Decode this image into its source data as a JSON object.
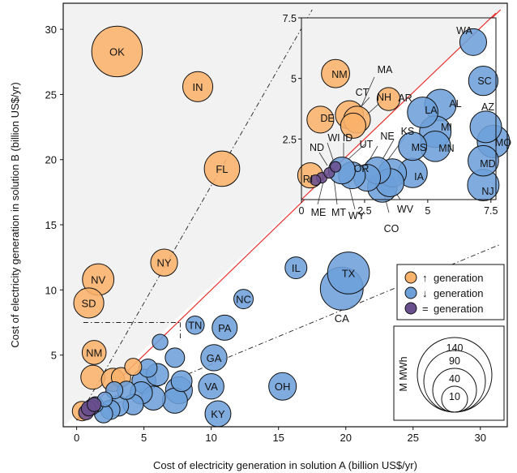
{
  "chart_data": {
    "type": "scatter",
    "main": {
      "xlabel": "Cost of electricity generation in solution A (billion US$/yr)",
      "ylabel": "Cost of electricity generation in solution B (billion US$/yr)",
      "xlim": [
        -1,
        32
      ],
      "ylim": [
        -0.5,
        32
      ],
      "xticks": [
        "0",
        "5",
        "10",
        "15",
        "20",
        "25",
        "30"
      ],
      "yticks": [
        "5",
        "10",
        "15",
        "20",
        "25",
        "30"
      ],
      "points": [
        {
          "label": "OK",
          "x": 3.0,
          "y": 28.3,
          "size": 140,
          "group": "up"
        },
        {
          "label": "IN",
          "x": 9.0,
          "y": 25.6,
          "size": 40,
          "group": "up"
        },
        {
          "label": "FL",
          "x": 10.8,
          "y": 19.3,
          "size": 60,
          "group": "up"
        },
        {
          "label": "NY",
          "x": 6.5,
          "y": 12.1,
          "size": 30,
          "group": "up"
        },
        {
          "label": "NV",
          "x": 1.6,
          "y": 10.8,
          "size": 45,
          "group": "up"
        },
        {
          "label": "SD",
          "x": 0.9,
          "y": 9.0,
          "size": 40,
          "group": "up"
        },
        {
          "label": "NM",
          "x": 1.3,
          "y": 5.2,
          "size": 22,
          "group": "up"
        },
        {
          "label": "",
          "x": 1.2,
          "y": 3.3,
          "size": 22,
          "group": "up"
        },
        {
          "label": "",
          "x": 2.7,
          "y": 3.1,
          "size": 20,
          "group": "up"
        },
        {
          "label": "",
          "x": 3.3,
          "y": 3.3,
          "size": 12,
          "group": "up"
        },
        {
          "label": "",
          "x": 4.2,
          "y": 4.1,
          "size": 8,
          "group": "up"
        },
        {
          "label": "",
          "x": 0.4,
          "y": 0.7,
          "size": 12,
          "group": "up"
        },
        {
          "label": "TX",
          "x": 20.2,
          "y": 11.3,
          "size": 90,
          "group": "down"
        },
        {
          "label": "CA",
          "x": 19.7,
          "y": 10.1,
          "size": 95,
          "group": "down"
        },
        {
          "label": "IL",
          "x": 16.3,
          "y": 11.7,
          "size": 17,
          "group": "down"
        },
        {
          "label": "NC",
          "x": 12.4,
          "y": 9.3,
          "size": 12,
          "group": "down"
        },
        {
          "label": "TN",
          "x": 8.8,
          "y": 7.3,
          "size": 10,
          "group": "down"
        },
        {
          "label": "PA",
          "x": 11.0,
          "y": 7.1,
          "size": 25,
          "group": "down"
        },
        {
          "label": "GA",
          "x": 10.2,
          "y": 4.8,
          "size": 28,
          "group": "down"
        },
        {
          "label": "VA",
          "x": 10.0,
          "y": 2.6,
          "size": 26,
          "group": "down"
        },
        {
          "label": "OH",
          "x": 15.3,
          "y": 2.6,
          "size": 32,
          "group": "down"
        },
        {
          "label": "KY",
          "x": 10.5,
          "y": 0.5,
          "size": 27,
          "group": "down"
        },
        {
          "label": "",
          "x": 6.2,
          "y": 6.0,
          "size": 6,
          "group": "down"
        },
        {
          "label": "",
          "x": 7.3,
          "y": 4.8,
          "size": 12,
          "group": "down"
        },
        {
          "label": "",
          "x": 5.3,
          "y": 4.0,
          "size": 10,
          "group": "down"
        },
        {
          "label": "",
          "x": 6.0,
          "y": 3.5,
          "size": 18,
          "group": "down"
        },
        {
          "label": "",
          "x": 5.0,
          "y": 3.0,
          "size": 22,
          "group": "down"
        },
        {
          "label": "",
          "x": 7.8,
          "y": 3.0,
          "size": 15,
          "group": "down"
        },
        {
          "label": "",
          "x": 7.6,
          "y": 2.3,
          "size": 30,
          "group": "down"
        },
        {
          "label": "",
          "x": 7.3,
          "y": 1.5,
          "size": 25,
          "group": "down"
        },
        {
          "label": "",
          "x": 5.7,
          "y": 1.7,
          "size": 22,
          "group": "down"
        },
        {
          "label": "",
          "x": 4.8,
          "y": 2.1,
          "size": 18,
          "group": "down"
        },
        {
          "label": "",
          "x": 4.2,
          "y": 1.2,
          "size": 14,
          "group": "down"
        },
        {
          "label": "",
          "x": 3.7,
          "y": 2.3,
          "size": 10,
          "group": "down"
        },
        {
          "label": "",
          "x": 3.1,
          "y": 1.1,
          "size": 14,
          "group": "down"
        },
        {
          "label": "",
          "x": 2.5,
          "y": 0.8,
          "size": 12,
          "group": "down"
        },
        {
          "label": "",
          "x": 2.0,
          "y": 0.5,
          "size": 10,
          "group": "down"
        },
        {
          "label": "",
          "x": 2.8,
          "y": 2.3,
          "size": 8,
          "group": "down"
        },
        {
          "label": "",
          "x": 1.4,
          "y": 1.2,
          "size": 6,
          "group": "down"
        },
        {
          "label": "",
          "x": 2.1,
          "y": 1.6,
          "size": 5,
          "group": "down"
        },
        {
          "label": "",
          "x": 0.7,
          "y": 0.6,
          "size": 5,
          "group": "eq"
        },
        {
          "label": "",
          "x": 0.9,
          "y": 0.9,
          "size": 5,
          "group": "eq"
        },
        {
          "label": "",
          "x": 1.1,
          "y": 1.0,
          "size": 6,
          "group": "eq"
        },
        {
          "label": "",
          "x": 1.3,
          "y": 1.2,
          "size": 4,
          "group": "eq"
        }
      ]
    },
    "inset": {
      "xlim": [
        0,
        7.7
      ],
      "ylim": [
        0,
        7.5
      ],
      "xticks": [
        "0",
        "2.5",
        "5",
        "7.5"
      ],
      "yticks": [
        "2.5",
        "5",
        "7.5"
      ],
      "points": [
        {
          "label": "WA",
          "x": 6.8,
          "y": 6.5,
          "size": 3,
          "group": "down"
        },
        {
          "label": "SC",
          "x": 7.2,
          "y": 4.9,
          "size": 5,
          "group": "down"
        },
        {
          "label": "AZ",
          "x": 7.3,
          "y": 3.0,
          "size": 7,
          "group": "down"
        },
        {
          "label": "MO",
          "x": 7.6,
          "y": 2.4,
          "size": 8,
          "group": "down"
        },
        {
          "label": "MD",
          "x": 7.2,
          "y": 1.6,
          "size": 6,
          "group": "down"
        },
        {
          "label": "NJ",
          "x": 7.2,
          "y": 0.6,
          "size": 7,
          "group": "down"
        },
        {
          "label": "AL",
          "x": 5.5,
          "y": 3.9,
          "size": 7,
          "group": "down"
        },
        {
          "label": "LA",
          "x": 4.8,
          "y": 3.6,
          "size": 6,
          "group": "down"
        },
        {
          "label": "MI",
          "x": 5.3,
          "y": 2.8,
          "size": 7,
          "group": "down"
        },
        {
          "label": "MN",
          "x": 5.3,
          "y": 2.2,
          "size": 6,
          "group": "down"
        },
        {
          "label": "MS",
          "x": 4.4,
          "y": 2.2,
          "size": 4,
          "group": "down"
        },
        {
          "label": "IA",
          "x": 4.4,
          "y": 1.1,
          "size": 5,
          "group": "down"
        },
        {
          "label": "KS",
          "x": 3.6,
          "y": 1.1,
          "size": 4,
          "group": "down"
        },
        {
          "label": "NE",
          "x": 3.0,
          "y": 1.2,
          "size": 3,
          "group": "down"
        },
        {
          "label": "",
          "x": 3.5,
          "y": 0.7,
          "size": 4,
          "group": "down"
        },
        {
          "label": "",
          "x": 3.2,
          "y": 0.5,
          "size": 5,
          "group": "down"
        },
        {
          "label": "",
          "x": 2.6,
          "y": 0.9,
          "size": 3,
          "group": "down"
        },
        {
          "label": "",
          "x": 2.0,
          "y": 1.0,
          "size": 3,
          "group": "down"
        },
        {
          "label": "",
          "x": 1.6,
          "y": 1.2,
          "size": 3,
          "group": "down"
        },
        {
          "label": "NM",
          "x": 1.35,
          "y": 5.2,
          "size": 4,
          "group": "up"
        },
        {
          "label": "DE",
          "x": 0.75,
          "y": 3.3,
          "size": 3,
          "group": "up"
        },
        {
          "label": "AR",
          "x": 3.45,
          "y": 4.15,
          "size": 1,
          "group": "up"
        },
        {
          "label": "",
          "x": 1.9,
          "y": 3.5,
          "size": 4,
          "group": "up"
        },
        {
          "label": "",
          "x": 2.2,
          "y": 3.3,
          "size": 3,
          "group": "up"
        },
        {
          "label": "",
          "x": 2.05,
          "y": 3.05,
          "size": 2,
          "group": "up"
        },
        {
          "label": "RI",
          "x": 0.35,
          "y": 1.0,
          "size": 2,
          "group": "up"
        },
        {
          "label": "",
          "x": 0.8,
          "y": 0.9,
          "size": 1,
          "group": "eq"
        },
        {
          "label": "",
          "x": 1.1,
          "y": 1.1,
          "size": 1,
          "group": "eq"
        },
        {
          "label": "",
          "x": 1.35,
          "y": 1.35,
          "size": 1,
          "group": "eq"
        },
        {
          "label": "",
          "x": 0.55,
          "y": 0.8,
          "size": 1,
          "group": "eq"
        },
        {
          "label": "MA",
          "x": 1.85,
          "y": 3.3,
          "size": 0,
          "group": "none"
        },
        {
          "label": "CT",
          "x": 1.8,
          "y": 3.0,
          "size": 0,
          "group": "none"
        },
        {
          "label": "NH",
          "x": 2.2,
          "y": 3.1,
          "size": 0,
          "group": "none"
        },
        {
          "label": "UT",
          "x": 1.7,
          "y": 1.7,
          "size": 0,
          "group": "none"
        },
        {
          "label": "ID",
          "x": 1.5,
          "y": 1.4,
          "size": 0,
          "group": "none"
        },
        {
          "label": "WI",
          "x": 1.3,
          "y": 1.3,
          "size": 0,
          "group": "none"
        },
        {
          "label": "ND",
          "x": 1.0,
          "y": 1.1,
          "size": 0,
          "group": "none"
        },
        {
          "label": "OR",
          "x": 2.0,
          "y": 1.0,
          "size": 0,
          "group": "none"
        },
        {
          "label": "ME",
          "x": 0.8,
          "y": 0.8,
          "size": 0,
          "group": "none"
        },
        {
          "label": "MT",
          "x": 1.1,
          "y": 0.95,
          "size": 0,
          "group": "none"
        },
        {
          "label": "WY",
          "x": 1.5,
          "y": 1.0,
          "size": 0,
          "group": "none"
        },
        {
          "label": "CO",
          "x": 3.4,
          "y": 0.6,
          "size": 0,
          "group": "none"
        },
        {
          "label": "WV",
          "x": 3.0,
          "y": 0.8,
          "size": 0,
          "group": "none"
        }
      ]
    },
    "legend": {
      "placement": "right",
      "entries": [
        {
          "label": "generation",
          "symbol": "↑",
          "color": "#f9b26b"
        },
        {
          "label": "generation",
          "symbol": "↓",
          "color": "#6d9fd9"
        },
        {
          "label": "generation",
          "symbol": "=",
          "color": "#6a4f8f"
        }
      ]
    },
    "size_legend": {
      "unit": "M MWh",
      "values": [
        140,
        90,
        40,
        10
      ]
    },
    "colors": {
      "up": "#f9b26b",
      "down": "#6d9fd9",
      "eq": "#6a4f8f",
      "diagonal": "#e8312f",
      "shade": "#f2f2f2"
    }
  }
}
